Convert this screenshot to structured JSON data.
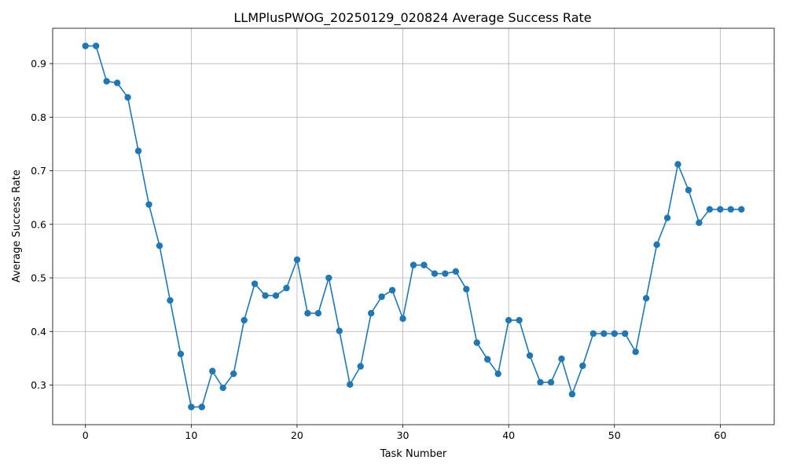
{
  "chart_data": {
    "type": "line",
    "title": "LLMPlusPWOG_20250129_020824 Average Success Rate",
    "xlabel": "Task Number",
    "ylabel": "Average Success Rate",
    "xlim": [
      -3.1,
      65.1
    ],
    "ylim": [
      0.226,
      0.966
    ],
    "xticks": [
      0,
      10,
      20,
      30,
      40,
      50,
      60
    ],
    "yticks": [
      0.3,
      0.4,
      0.5,
      0.6,
      0.7,
      0.8,
      0.9
    ],
    "grid": true,
    "color": "#1f77b4",
    "marker": "circle",
    "x": [
      0,
      1,
      2,
      3,
      4,
      5,
      6,
      7,
      8,
      9,
      10,
      11,
      12,
      13,
      14,
      15,
      16,
      17,
      18,
      19,
      20,
      21,
      22,
      23,
      24,
      25,
      26,
      27,
      28,
      29,
      30,
      31,
      32,
      33,
      34,
      35,
      36,
      37,
      38,
      39,
      40,
      41,
      42,
      43,
      44,
      45,
      46,
      47,
      48,
      49,
      50,
      51,
      52,
      53,
      54,
      55,
      56,
      57,
      58,
      59,
      60,
      61,
      62
    ],
    "y": [
      0.933,
      0.933,
      0.867,
      0.864,
      0.837,
      0.737,
      0.637,
      0.56,
      0.458,
      0.358,
      0.259,
      0.259,
      0.326,
      0.295,
      0.321,
      0.421,
      0.489,
      0.467,
      0.467,
      0.481,
      0.534,
      0.434,
      0.434,
      0.5,
      0.401,
      0.301,
      0.335,
      0.434,
      0.465,
      0.477,
      0.424,
      0.524,
      0.524,
      0.508,
      0.508,
      0.512,
      0.479,
      0.379,
      0.348,
      0.321,
      0.421,
      0.421,
      0.355,
      0.305,
      0.305,
      0.349,
      0.283,
      0.336,
      0.396,
      0.396,
      0.396,
      0.396,
      0.362,
      0.462,
      0.562,
      0.612,
      0.712,
      0.664,
      0.603,
      0.628,
      0.628,
      0.628,
      0.628
    ]
  }
}
